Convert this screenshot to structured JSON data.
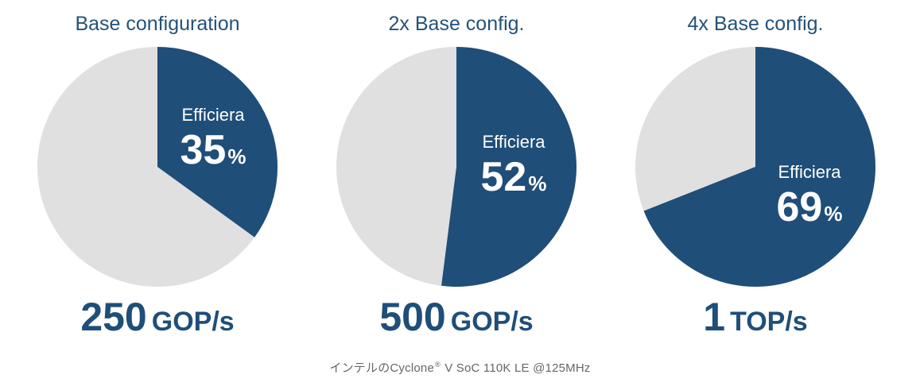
{
  "colors": {
    "efficiency_slice": "#1f4e79",
    "remainder_slice": "#e0e0e0",
    "title_text": "#24527a",
    "throughput_text": "#1f4e79",
    "slice_label_text": "#ffffff"
  },
  "chart_data": [
    {
      "type": "pie",
      "title": "Base configuration",
      "slice_label": "Efficiera",
      "efficiency_percent": 35,
      "percent_sign": "%",
      "throughput_value": "250",
      "throughput_unit": "GOP/s"
    },
    {
      "type": "pie",
      "title": "2x Base config.",
      "slice_label": "Efficiera",
      "efficiency_percent": 52,
      "percent_sign": "%",
      "throughput_value": "500",
      "throughput_unit": "GOP/s"
    },
    {
      "type": "pie",
      "title": "4x Base config.",
      "slice_label": "Efficiera",
      "efficiency_percent": 69,
      "percent_sign": "%",
      "throughput_value": "1",
      "throughput_unit": "TOP/s"
    }
  ],
  "footnote": {
    "before": "インテルのCyclone",
    "registered": "®",
    "after": " V SoC 110K LE @125MHz"
  }
}
